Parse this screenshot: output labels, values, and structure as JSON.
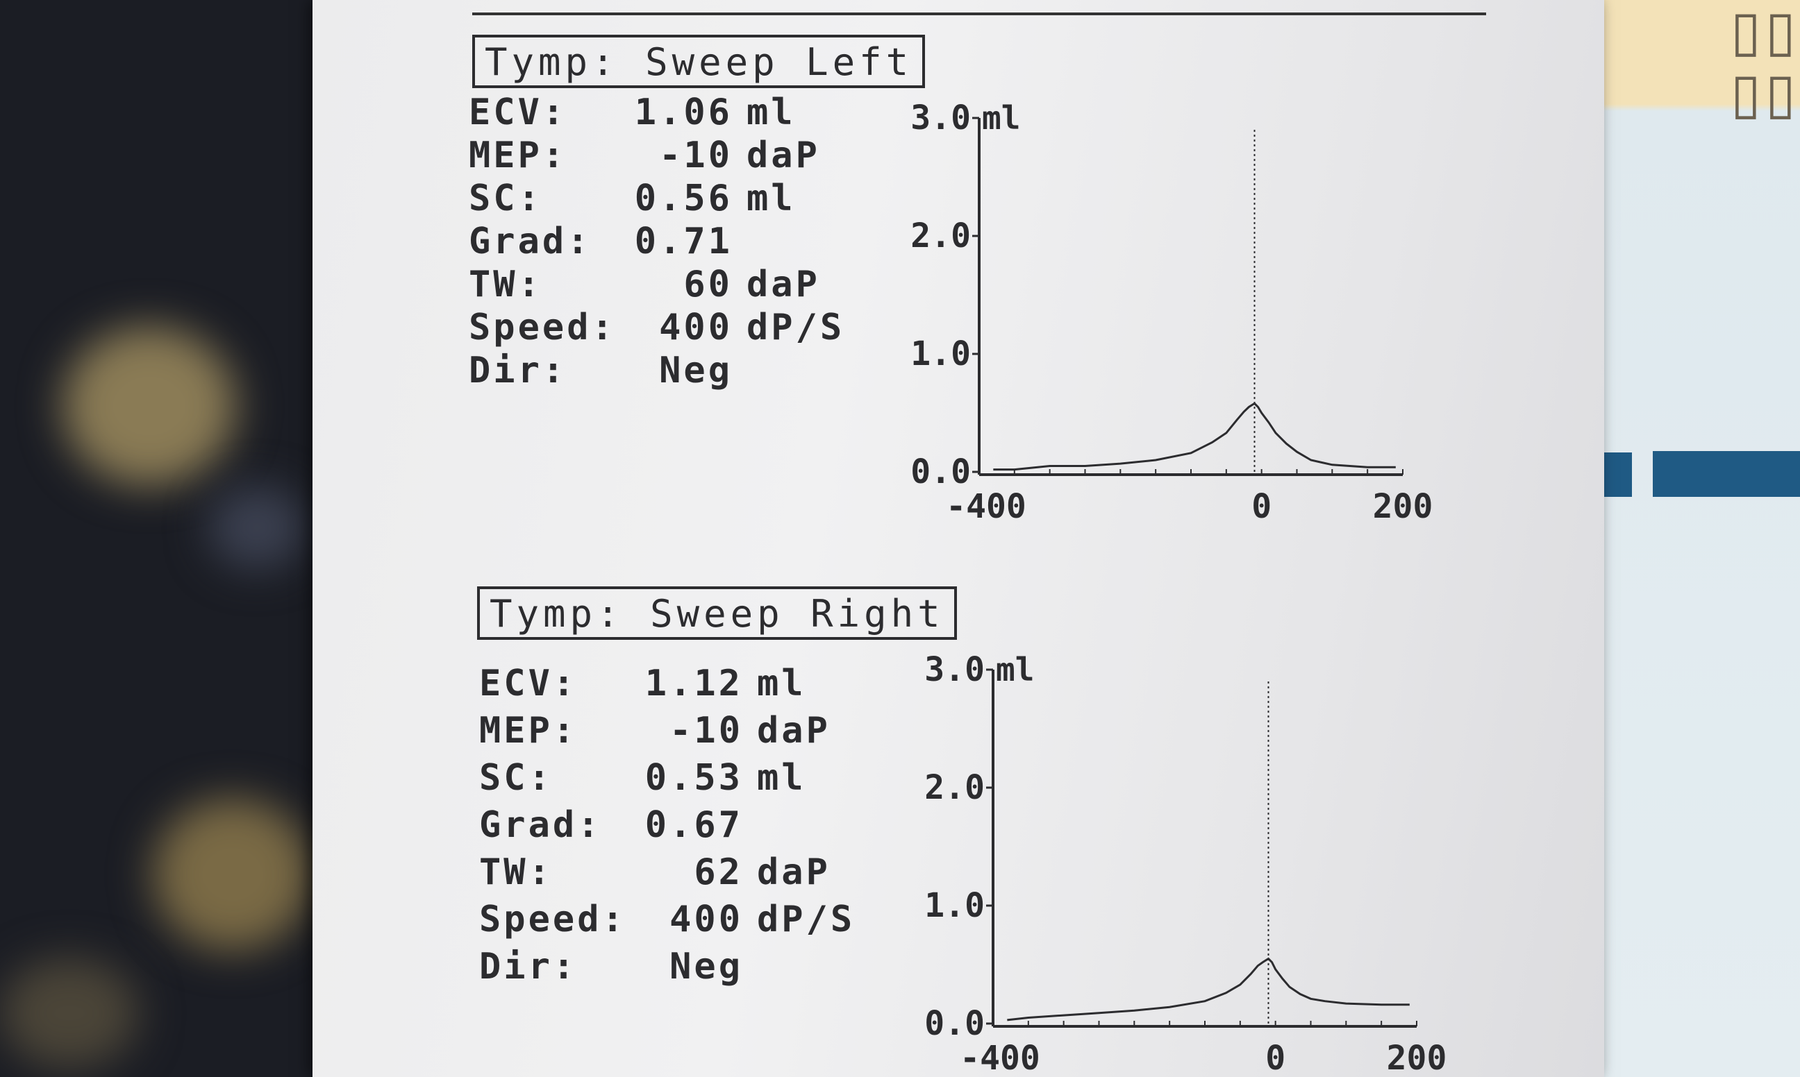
{
  "left": {
    "title": "Tymp: Sweep Left",
    "rows": [
      {
        "label": "ECV:",
        "value": "1.06",
        "unit": "ml"
      },
      {
        "label": "MEP:",
        "value": "-10",
        "unit": "daP"
      },
      {
        "label": "SC:",
        "value": "0.56",
        "unit": "ml"
      },
      {
        "label": "Grad:",
        "value": "0.71",
        "unit": ""
      },
      {
        "label": "TW:",
        "value": "60",
        "unit": "daP"
      },
      {
        "label": "Speed:",
        "value": "400",
        "unit": "dP/S"
      },
      {
        "label": "Dir:",
        "value": "Neg",
        "unit": ""
      }
    ]
  },
  "right": {
    "title": "Tymp: Sweep Right",
    "rows": [
      {
        "label": "ECV:",
        "value": "1.12",
        "unit": "ml"
      },
      {
        "label": "MEP:",
        "value": "-10",
        "unit": "daP"
      },
      {
        "label": "SC:",
        "value": "0.53",
        "unit": "ml"
      },
      {
        "label": "Grad:",
        "value": "0.67",
        "unit": ""
      },
      {
        "label": "TW:",
        "value": "62",
        "unit": "daP"
      },
      {
        "label": "Speed:",
        "value": "400",
        "unit": "dP/S"
      },
      {
        "label": "Dir:",
        "value": "Neg",
        "unit": ""
      }
    ]
  },
  "chart_data": [
    {
      "type": "line",
      "title": "",
      "ylabel": "ml",
      "xlabel": "",
      "xlim": [
        -400,
        200
      ],
      "ylim": [
        0,
        3.0
      ],
      "yticks": [
        "3.0",
        "2.0",
        "1.0",
        "0.0"
      ],
      "xticks": [
        "-400",
        "0",
        "200"
      ],
      "marker_x": -10,
      "x": [
        -380,
        -350,
        -300,
        -250,
        -200,
        -150,
        -100,
        -70,
        -50,
        -35,
        -25,
        -18,
        -10,
        -5,
        0,
        10,
        20,
        35,
        50,
        70,
        100,
        150,
        190
      ],
      "y": [
        0.02,
        0.02,
        0.05,
        0.05,
        0.07,
        0.1,
        0.16,
        0.25,
        0.33,
        0.44,
        0.51,
        0.55,
        0.58,
        0.55,
        0.5,
        0.42,
        0.33,
        0.24,
        0.17,
        0.1,
        0.06,
        0.04,
        0.04
      ]
    },
    {
      "type": "line",
      "title": "",
      "ylabel": "ml",
      "xlabel": "",
      "xlim": [
        -400,
        200
      ],
      "ylim": [
        0,
        3.0
      ],
      "yticks": [
        "3.0",
        "2.0",
        "1.0",
        "0.0"
      ],
      "xticks": [
        "-400",
        "0",
        "200"
      ],
      "marker_x": -10,
      "x": [
        -380,
        -350,
        -300,
        -250,
        -200,
        -150,
        -100,
        -70,
        -50,
        -35,
        -25,
        -18,
        -10,
        -5,
        0,
        10,
        20,
        35,
        50,
        70,
        100,
        150,
        190
      ],
      "y": [
        0.03,
        0.05,
        0.07,
        0.09,
        0.11,
        0.14,
        0.19,
        0.26,
        0.33,
        0.42,
        0.49,
        0.52,
        0.55,
        0.52,
        0.46,
        0.38,
        0.31,
        0.25,
        0.21,
        0.19,
        0.17,
        0.16,
        0.16
      ]
    }
  ],
  "colors": {
    "ink": "#2c2c2f",
    "paper": "#efeff0",
    "blue_band": "#1f5a84"
  }
}
